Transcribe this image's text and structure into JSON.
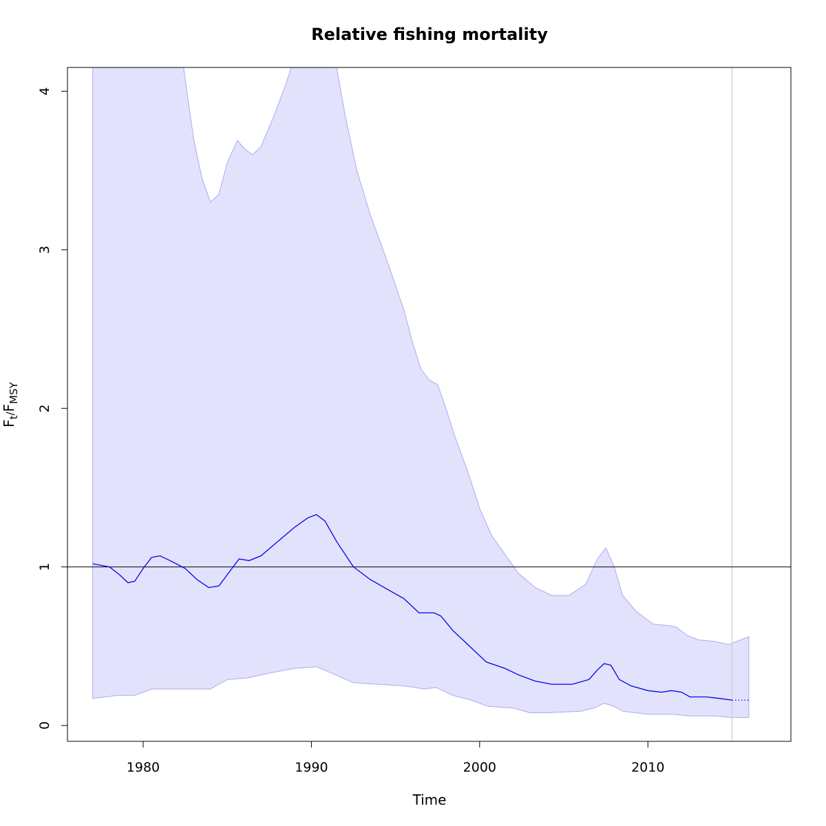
{
  "chart_data": {
    "type": "line",
    "title": "Relative fishing mortality",
    "xlabel": "Time",
    "ylabel": {
      "base": "F",
      "sub1": "t",
      "sep": "/",
      "base2": "F",
      "sub2": "MSY"
    },
    "xlim": [
      1975.5,
      2018.5
    ],
    "ylim": [
      -0.1,
      4.15
    ],
    "x_ticks": [
      1980,
      1990,
      2000,
      2010
    ],
    "y_ticks": [
      0,
      1,
      2,
      3,
      4
    ],
    "reference_line_y": 1,
    "vertical_line_x": 2015,
    "colors": {
      "estimate": "#0000ee",
      "band_fill": "#e2e2fc",
      "band_edge": "#aaaaf2",
      "vline": "#d2d2d2",
      "ref": "#000000"
    },
    "series": [
      {
        "name": "",
        "role": "upper",
        "points": [
          [
            1977,
            4.15
          ],
          [
            1982.4,
            4.15
          ],
          [
            1983,
            3.7
          ],
          [
            1983.5,
            3.45
          ],
          [
            1984,
            3.3
          ],
          [
            1984.5,
            3.35
          ],
          [
            1985,
            3.55
          ],
          [
            1985.6,
            3.69
          ],
          [
            1986,
            3.64
          ],
          [
            1986.5,
            3.6
          ],
          [
            1987,
            3.65
          ],
          [
            1987.8,
            3.85
          ],
          [
            1988.5,
            4.05
          ],
          [
            1988.8,
            4.15
          ],
          [
            1991.5,
            4.15
          ],
          [
            1992,
            3.85
          ],
          [
            1992.7,
            3.5
          ],
          [
            1993.5,
            3.22
          ],
          [
            1994.5,
            2.93
          ],
          [
            1995.5,
            2.62
          ],
          [
            1996,
            2.42
          ],
          [
            1996.5,
            2.25
          ],
          [
            1997,
            2.18
          ],
          [
            1997.5,
            2.15
          ],
          [
            1998,
            2.0
          ],
          [
            1998.5,
            1.83
          ],
          [
            1999.3,
            1.6
          ],
          [
            2000,
            1.37
          ],
          [
            2000.7,
            1.2
          ],
          [
            2001.5,
            1.08
          ],
          [
            2002.3,
            0.96
          ],
          [
            2003.3,
            0.87
          ],
          [
            2004.3,
            0.82
          ],
          [
            2005.3,
            0.82
          ],
          [
            2006.3,
            0.89
          ],
          [
            2007,
            1.05
          ],
          [
            2007.5,
            1.12
          ],
          [
            2008,
            1.0
          ],
          [
            2008.5,
            0.82
          ],
          [
            2009.3,
            0.72
          ],
          [
            2010.3,
            0.64
          ],
          [
            2011.2,
            0.63
          ],
          [
            2011.7,
            0.62
          ],
          [
            2012.3,
            0.57
          ],
          [
            2013,
            0.54
          ],
          [
            2014,
            0.53
          ],
          [
            2014.8,
            0.51
          ],
          [
            2016,
            0.56
          ]
        ]
      },
      {
        "name": "",
        "role": "lower",
        "points": [
          [
            1977,
            0.17
          ],
          [
            1978.5,
            0.19
          ],
          [
            1979.5,
            0.19
          ],
          [
            1980.5,
            0.23
          ],
          [
            1982.5,
            0.23
          ],
          [
            1984,
            0.23
          ],
          [
            1985,
            0.29
          ],
          [
            1986.2,
            0.3
          ],
          [
            1987.5,
            0.33
          ],
          [
            1989,
            0.36
          ],
          [
            1990.3,
            0.37
          ],
          [
            1991.2,
            0.33
          ],
          [
            1992.5,
            0.27
          ],
          [
            1994,
            0.26
          ],
          [
            1995.5,
            0.25
          ],
          [
            1996.7,
            0.23
          ],
          [
            1997.4,
            0.24
          ],
          [
            1998.4,
            0.19
          ],
          [
            1999.5,
            0.16
          ],
          [
            2000.5,
            0.12
          ],
          [
            2002,
            0.11
          ],
          [
            2003,
            0.08
          ],
          [
            2004,
            0.08
          ],
          [
            2006,
            0.09
          ],
          [
            2006.8,
            0.11
          ],
          [
            2007.4,
            0.14
          ],
          [
            2008,
            0.12
          ],
          [
            2008.5,
            0.09
          ],
          [
            2010,
            0.07
          ],
          [
            2011.5,
            0.07
          ],
          [
            2012.5,
            0.06
          ],
          [
            2014,
            0.06
          ],
          [
            2015,
            0.05
          ],
          [
            2016,
            0.05
          ]
        ]
      },
      {
        "name": "",
        "role": "estimate",
        "points": [
          [
            1977,
            1.02
          ],
          [
            1978,
            1.0
          ],
          [
            1978.6,
            0.95
          ],
          [
            1979.1,
            0.9
          ],
          [
            1979.5,
            0.91
          ],
          [
            1980,
            0.99
          ],
          [
            1980.5,
            1.06
          ],
          [
            1981,
            1.07
          ],
          [
            1981.6,
            1.04
          ],
          [
            1982.5,
            0.99
          ],
          [
            1983.2,
            0.92
          ],
          [
            1983.9,
            0.87
          ],
          [
            1984.5,
            0.88
          ],
          [
            1985.2,
            0.98
          ],
          [
            1985.7,
            1.05
          ],
          [
            1986.3,
            1.04
          ],
          [
            1987,
            1.07
          ],
          [
            1988,
            1.16
          ],
          [
            1989,
            1.25
          ],
          [
            1989.8,
            1.31
          ],
          [
            1990.3,
            1.33
          ],
          [
            1990.8,
            1.29
          ],
          [
            1991.5,
            1.16
          ],
          [
            1992.5,
            1.0
          ],
          [
            1993.5,
            0.92
          ],
          [
            1994.5,
            0.86
          ],
          [
            1995.5,
            0.8
          ],
          [
            1996.4,
            0.71
          ],
          [
            1997.3,
            0.71
          ],
          [
            1997.7,
            0.69
          ],
          [
            1998.4,
            0.6
          ],
          [
            1999.5,
            0.49
          ],
          [
            2000.4,
            0.4
          ],
          [
            2001.5,
            0.36
          ],
          [
            2002.3,
            0.32
          ],
          [
            2003.3,
            0.28
          ],
          [
            2004.3,
            0.26
          ],
          [
            2005.5,
            0.26
          ],
          [
            2006.5,
            0.29
          ],
          [
            2007,
            0.35
          ],
          [
            2007.4,
            0.39
          ],
          [
            2007.8,
            0.38
          ],
          [
            2008.3,
            0.29
          ],
          [
            2009,
            0.25
          ],
          [
            2010,
            0.22
          ],
          [
            2010.8,
            0.21
          ],
          [
            2011.4,
            0.22
          ],
          [
            2012,
            0.21
          ],
          [
            2012.5,
            0.18
          ],
          [
            2013.5,
            0.18
          ],
          [
            2014.3,
            0.17
          ],
          [
            2015,
            0.16
          ]
        ]
      },
      {
        "name": "",
        "role": "projection",
        "points": [
          [
            2015,
            0.16
          ],
          [
            2016,
            0.16
          ]
        ]
      }
    ]
  }
}
